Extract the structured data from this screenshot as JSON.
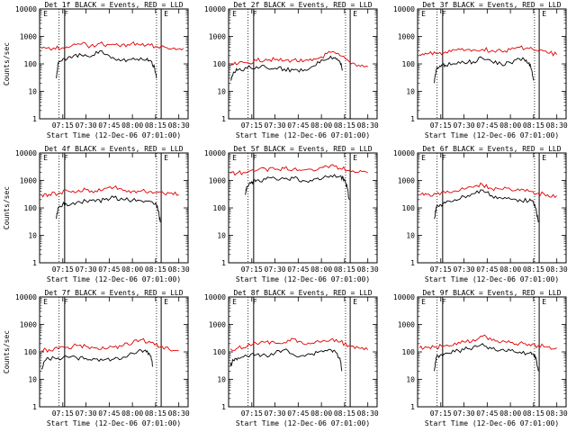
{
  "chart_data": [
    {
      "type": "line",
      "title": "Det 1f BLACK = Events, RED = LLD",
      "ylabel": "Counts/sec",
      "xlabel": "Start Time (12-Dec-06 07:01:00)",
      "xlim": [
        7.0,
        8.6
      ],
      "ylim": [
        1,
        10000
      ],
      "yscale": "log",
      "yticks": [
        "1",
        "10",
        "100",
        "1000",
        "10000"
      ],
      "xticks": [
        "07:15",
        "07:30",
        "07:45",
        "08:00",
        "08:15",
        "08:30"
      ],
      "annotations": [
        {
          "text": "E",
          "x": 7.04
        },
        {
          "text": "F",
          "x": 7.26
        },
        {
          "text": "E",
          "x": 8.34
        }
      ],
      "vlines_dotted": [
        7.21,
        8.26
      ],
      "vlines_solid": [
        7.27,
        8.31
      ],
      "series": [
        {
          "color": "#e00000",
          "x": [
            7.02,
            7.15,
            7.25,
            7.35,
            7.45,
            7.55,
            7.65,
            7.75,
            7.85,
            7.95,
            8.05,
            8.15,
            8.25,
            8.35,
            8.45,
            8.55
          ],
          "y": [
            370,
            380,
            390,
            470,
            520,
            450,
            560,
            500,
            470,
            510,
            560,
            480,
            430,
            400,
            380,
            370
          ]
        },
        {
          "color": "#000000",
          "x": [
            7.18,
            7.2,
            7.25,
            7.3,
            7.35,
            7.45,
            7.55,
            7.65,
            7.75,
            7.85,
            7.95,
            8.05,
            8.15,
            8.2,
            8.24,
            8.26
          ],
          "y": [
            30,
            110,
            150,
            160,
            170,
            210,
            180,
            300,
            200,
            150,
            140,
            150,
            140,
            130,
            70,
            30
          ]
        }
      ]
    },
    {
      "type": "line",
      "title": "Det 2f BLACK = Events, RED = LLD",
      "ylabel": "",
      "xlabel": "Start Time (12-Dec-06 07:01:00)",
      "xlim": [
        7.0,
        8.6
      ],
      "ylim": [
        1,
        10000
      ],
      "yscale": "log",
      "yticks": [
        "1",
        "10",
        "100",
        "1000",
        "10000"
      ],
      "xticks": [
        "07:15",
        "07:30",
        "07:45",
        "08:00",
        "08:15",
        "08:30"
      ],
      "annotations": [
        {
          "text": "E",
          "x": 7.04
        },
        {
          "text": "F",
          "x": 7.26
        },
        {
          "text": "E",
          "x": 8.34
        }
      ],
      "vlines_dotted": [
        7.21,
        8.26
      ],
      "vlines_solid": [
        7.27,
        8.31
      ],
      "series": [
        {
          "color": "#e00000",
          "x": [
            7.02,
            7.1,
            7.2,
            7.3,
            7.4,
            7.5,
            7.6,
            7.7,
            7.8,
            7.9,
            8.0,
            8.1,
            8.2,
            8.3,
            8.4,
            8.5
          ],
          "y": [
            90,
            100,
            110,
            130,
            150,
            140,
            130,
            140,
            120,
            130,
            180,
            260,
            200,
            120,
            90,
            80
          ]
        },
        {
          "color": "#000000",
          "x": [
            7.02,
            7.06,
            7.1,
            7.2,
            7.3,
            7.4,
            7.5,
            7.6,
            7.7,
            7.8,
            7.9,
            8.0,
            8.1,
            8.15,
            8.2,
            8.23
          ],
          "y": [
            25,
            50,
            60,
            70,
            80,
            75,
            70,
            65,
            60,
            55,
            80,
            140,
            190,
            170,
            120,
            60
          ]
        }
      ]
    },
    {
      "type": "line",
      "title": "Det 3f BLACK = Events, RED = LLD",
      "ylabel": "",
      "xlabel": "Start Time (12-Dec-06 07:01:00)",
      "xlim": [
        7.0,
        8.6
      ],
      "ylim": [
        1,
        10000
      ],
      "yscale": "log",
      "yticks": [
        "1",
        "10",
        "100",
        "1000",
        "10000"
      ],
      "xticks": [
        "07:15",
        "07:30",
        "07:45",
        "08:00",
        "08:15",
        "08:30"
      ],
      "annotations": [
        {
          "text": "E",
          "x": 7.04
        },
        {
          "text": "F",
          "x": 7.26
        },
        {
          "text": "E",
          "x": 8.34
        }
      ],
      "vlines_dotted": [
        7.21,
        8.26
      ],
      "vlines_solid": [
        7.27,
        8.31
      ],
      "series": [
        {
          "color": "#e00000",
          "x": [
            7.02,
            7.1,
            7.2,
            7.3,
            7.4,
            7.5,
            7.6,
            7.7,
            7.8,
            7.9,
            8.0,
            8.1,
            8.2,
            8.3,
            8.4,
            8.5
          ],
          "y": [
            220,
            230,
            240,
            270,
            320,
            300,
            330,
            340,
            310,
            300,
            330,
            400,
            360,
            290,
            250,
            220
          ]
        },
        {
          "color": "#000000",
          "x": [
            7.18,
            7.2,
            7.25,
            7.3,
            7.4,
            7.5,
            7.6,
            7.7,
            7.8,
            7.9,
            8.0,
            8.1,
            8.15,
            8.2,
            8.23,
            8.25
          ],
          "y": [
            20,
            60,
            80,
            90,
            100,
            110,
            120,
            160,
            120,
            100,
            110,
            150,
            140,
            110,
            60,
            25
          ]
        }
      ]
    },
    {
      "type": "line",
      "title": "Det 4f BLACK = Events, RED = LLD",
      "ylabel": "Counts/sec",
      "xlabel": "Start Time (12-Dec-06 07:01:00)",
      "xlim": [
        7.0,
        8.6
      ],
      "ylim": [
        1,
        10000
      ],
      "yscale": "log",
      "yticks": [
        "1",
        "10",
        "100",
        "1000",
        "10000"
      ],
      "xticks": [
        "07:15",
        "07:30",
        "07:45",
        "08:00",
        "08:15",
        "08:30"
      ],
      "annotations": [
        {
          "text": "E",
          "x": 7.04
        },
        {
          "text": "F",
          "x": 7.26
        },
        {
          "text": "E",
          "x": 8.34
        }
      ],
      "vlines_dotted": [
        7.21,
        8.26
      ],
      "vlines_solid": [
        7.27,
        8.31
      ],
      "series": [
        {
          "color": "#e00000",
          "x": [
            7.02,
            7.1,
            7.2,
            7.3,
            7.4,
            7.5,
            7.6,
            7.7,
            7.8,
            7.9,
            8.0,
            8.1,
            8.2,
            8.3,
            8.4,
            8.5
          ],
          "y": [
            300,
            310,
            330,
            420,
            380,
            460,
            420,
            520,
            560,
            430,
            400,
            420,
            400,
            380,
            340,
            300
          ]
        },
        {
          "color": "#000000",
          "x": [
            7.18,
            7.2,
            7.25,
            7.3,
            7.4,
            7.5,
            7.6,
            7.7,
            7.8,
            7.9,
            8.0,
            8.1,
            8.2,
            8.25,
            8.28,
            8.3
          ],
          "y": [
            40,
            100,
            140,
            120,
            160,
            180,
            170,
            200,
            240,
            200,
            190,
            180,
            170,
            150,
            80,
            30
          ]
        }
      ]
    },
    {
      "type": "line",
      "title": "Det 5f BLACK = Events, RED = LLD",
      "ylabel": "",
      "xlabel": "Start Time (12-Dec-06 07:01:00)",
      "xlim": [
        7.0,
        8.6
      ],
      "ylim": [
        1,
        10000
      ],
      "yscale": "log",
      "yticks": [
        "1",
        "10",
        "100",
        "1000",
        "10000"
      ],
      "xticks": [
        "07:15",
        "07:30",
        "07:45",
        "08:00",
        "08:15",
        "08:30"
      ],
      "annotations": [
        {
          "text": "E",
          "x": 7.04
        },
        {
          "text": "F",
          "x": 7.26
        },
        {
          "text": "E",
          "x": 8.34
        }
      ],
      "vlines_dotted": [
        7.21,
        8.26
      ],
      "vlines_solid": [
        7.27,
        8.31
      ],
      "series": [
        {
          "color": "#e00000",
          "x": [
            7.02,
            7.1,
            7.2,
            7.3,
            7.4,
            7.5,
            7.6,
            7.7,
            7.8,
            7.9,
            8.0,
            8.1,
            8.2,
            8.3,
            8.4,
            8.5
          ],
          "y": [
            1800,
            1900,
            2000,
            2300,
            2600,
            2500,
            2700,
            2600,
            2400,
            2500,
            3000,
            3500,
            2800,
            2300,
            2000,
            1900
          ]
        },
        {
          "color": "#000000",
          "x": [
            7.18,
            7.2,
            7.25,
            7.3,
            7.4,
            7.5,
            7.6,
            7.7,
            7.8,
            7.9,
            8.0,
            8.1,
            8.2,
            8.25,
            8.28,
            8.3
          ],
          "y": [
            300,
            600,
            900,
            1000,
            1100,
            1200,
            1150,
            1200,
            1000,
            950,
            1100,
            1500,
            1400,
            1100,
            500,
            200
          ]
        }
      ]
    },
    {
      "type": "line",
      "title": "Det 6f BLACK = Events, RED = LLD",
      "ylabel": "",
      "xlabel": "Start Time (12-Dec-06 07:01:00)",
      "xlim": [
        7.0,
        8.6
      ],
      "ylim": [
        1,
        10000
      ],
      "yscale": "log",
      "yticks": [
        "1",
        "10",
        "100",
        "1000",
        "10000"
      ],
      "xticks": [
        "07:15",
        "07:30",
        "07:45",
        "08:00",
        "08:15",
        "08:30"
      ],
      "annotations": [
        {
          "text": "E",
          "x": 7.04
        },
        {
          "text": "F",
          "x": 7.26
        },
        {
          "text": "E",
          "x": 8.34
        }
      ],
      "vlines_dotted": [
        7.21,
        8.26
      ],
      "vlines_solid": [
        7.27,
        8.31
      ],
      "series": [
        {
          "color": "#e00000",
          "x": [
            7.02,
            7.1,
            7.2,
            7.3,
            7.4,
            7.5,
            7.6,
            7.7,
            7.8,
            7.9,
            8.0,
            8.1,
            8.2,
            8.3,
            8.4,
            8.5
          ],
          "y": [
            300,
            310,
            320,
            350,
            420,
            480,
            560,
            700,
            500,
            480,
            470,
            430,
            400,
            340,
            300,
            280
          ]
        },
        {
          "color": "#000000",
          "x": [
            7.18,
            7.2,
            7.25,
            7.3,
            7.4,
            7.5,
            7.6,
            7.7,
            7.8,
            7.9,
            8.0,
            8.1,
            8.2,
            8.25,
            8.28,
            8.3
          ],
          "y": [
            40,
            100,
            130,
            150,
            200,
            260,
            330,
            450,
            280,
            230,
            210,
            200,
            180,
            150,
            80,
            30
          ]
        }
      ]
    },
    {
      "type": "line",
      "title": "Det 7f BLACK = Events, RED = LLD",
      "ylabel": "Counts/sec",
      "xlabel": "Start Time (12-Dec-06 07:01:00)",
      "xlim": [
        7.0,
        8.6
      ],
      "ylim": [
        1,
        10000
      ],
      "yscale": "log",
      "yticks": [
        "1",
        "10",
        "100",
        "1000",
        "10000"
      ],
      "xticks": [
        "07:15",
        "07:30",
        "07:45",
        "08:00",
        "08:15",
        "08:30"
      ],
      "annotations": [
        {
          "text": "E",
          "x": 7.04
        },
        {
          "text": "F",
          "x": 7.26
        },
        {
          "text": "E",
          "x": 8.34
        }
      ],
      "vlines_dotted": [
        7.21,
        8.26
      ],
      "vlines_solid": [
        7.27,
        8.31
      ],
      "series": [
        {
          "color": "#e00000",
          "x": [
            7.02,
            7.1,
            7.2,
            7.3,
            7.4,
            7.5,
            7.6,
            7.7,
            7.8,
            7.9,
            8.0,
            8.1,
            8.2,
            8.3,
            8.4,
            8.5
          ],
          "y": [
            110,
            120,
            130,
            150,
            170,
            160,
            140,
            130,
            150,
            170,
            210,
            280,
            220,
            150,
            120,
            110
          ]
        },
        {
          "color": "#000000",
          "x": [
            7.02,
            7.05,
            7.1,
            7.2,
            7.3,
            7.4,
            7.5,
            7.6,
            7.7,
            7.8,
            7.9,
            8.0,
            8.1,
            8.15,
            8.2,
            8.22
          ],
          "y": [
            25,
            45,
            55,
            60,
            65,
            60,
            58,
            55,
            52,
            55,
            65,
            90,
            110,
            100,
            70,
            30
          ]
        }
      ]
    },
    {
      "type": "line",
      "title": "Det 8f BLACK = Events, RED = LLD",
      "ylabel": "",
      "xlabel": "Start Time (12-Dec-06 07:01:00)",
      "xlim": [
        7.0,
        8.6
      ],
      "ylim": [
        1,
        10000
      ],
      "yscale": "log",
      "yticks": [
        "1",
        "10",
        "100",
        "1000",
        "10000"
      ],
      "xticks": [
        "07:15",
        "07:30",
        "07:45",
        "08:00",
        "08:15",
        "08:30"
      ],
      "annotations": [
        {
          "text": "E",
          "x": 7.04
        },
        {
          "text": "F",
          "x": 7.26
        },
        {
          "text": "E",
          "x": 8.34
        }
      ],
      "vlines_dotted": [
        7.21,
        8.26
      ],
      "vlines_solid": [
        7.27,
        8.31
      ],
      "series": [
        {
          "color": "#e00000",
          "x": [
            7.02,
            7.1,
            7.2,
            7.3,
            7.4,
            7.5,
            7.6,
            7.7,
            7.8,
            7.9,
            8.0,
            8.1,
            8.2,
            8.3,
            8.4,
            8.5
          ],
          "y": [
            130,
            140,
            160,
            200,
            230,
            210,
            220,
            300,
            200,
            210,
            230,
            280,
            230,
            170,
            140,
            120
          ]
        },
        {
          "color": "#000000",
          "x": [
            7.02,
            7.05,
            7.1,
            7.2,
            7.3,
            7.4,
            7.5,
            7.6,
            7.7,
            7.8,
            7.9,
            8.0,
            8.1,
            8.15,
            8.2,
            8.22
          ],
          "y": [
            30,
            50,
            60,
            70,
            80,
            75,
            90,
            120,
            80,
            75,
            85,
            110,
            120,
            100,
            60,
            20
          ]
        }
      ]
    },
    {
      "type": "line",
      "title": "Det 9f BLACK = Events, RED = LLD",
      "ylabel": "",
      "xlabel": "Start Time (12-Dec-06 07:01:00)",
      "xlim": [
        7.0,
        8.6
      ],
      "ylim": [
        1,
        10000
      ],
      "yscale": "log",
      "yticks": [
        "1",
        "10",
        "100",
        "1000",
        "10000"
      ],
      "xticks": [
        "07:15",
        "07:30",
        "07:45",
        "08:00",
        "08:15",
        "08:30"
      ],
      "annotations": [
        {
          "text": "E",
          "x": 7.04
        },
        {
          "text": "F",
          "x": 7.26
        },
        {
          "text": "E",
          "x": 8.34
        }
      ],
      "vlines_dotted": [
        7.21,
        8.26
      ],
      "vlines_solid": [
        7.27,
        8.31
      ],
      "series": [
        {
          "color": "#e00000",
          "x": [
            7.02,
            7.1,
            7.2,
            7.3,
            7.4,
            7.5,
            7.6,
            7.7,
            7.8,
            7.9,
            8.0,
            8.1,
            8.2,
            8.3,
            8.4,
            8.5
          ],
          "y": [
            140,
            145,
            150,
            170,
            210,
            230,
            280,
            370,
            260,
            230,
            220,
            210,
            190,
            170,
            150,
            140
          ]
        },
        {
          "color": "#000000",
          "x": [
            7.18,
            7.2,
            7.25,
            7.3,
            7.4,
            7.5,
            7.6,
            7.7,
            7.8,
            7.9,
            8.0,
            8.1,
            8.2,
            8.25,
            8.28,
            8.3
          ],
          "y": [
            20,
            60,
            80,
            90,
            100,
            120,
            150,
            200,
            130,
            120,
            110,
            100,
            90,
            80,
            50,
            20
          ]
        }
      ]
    }
  ]
}
